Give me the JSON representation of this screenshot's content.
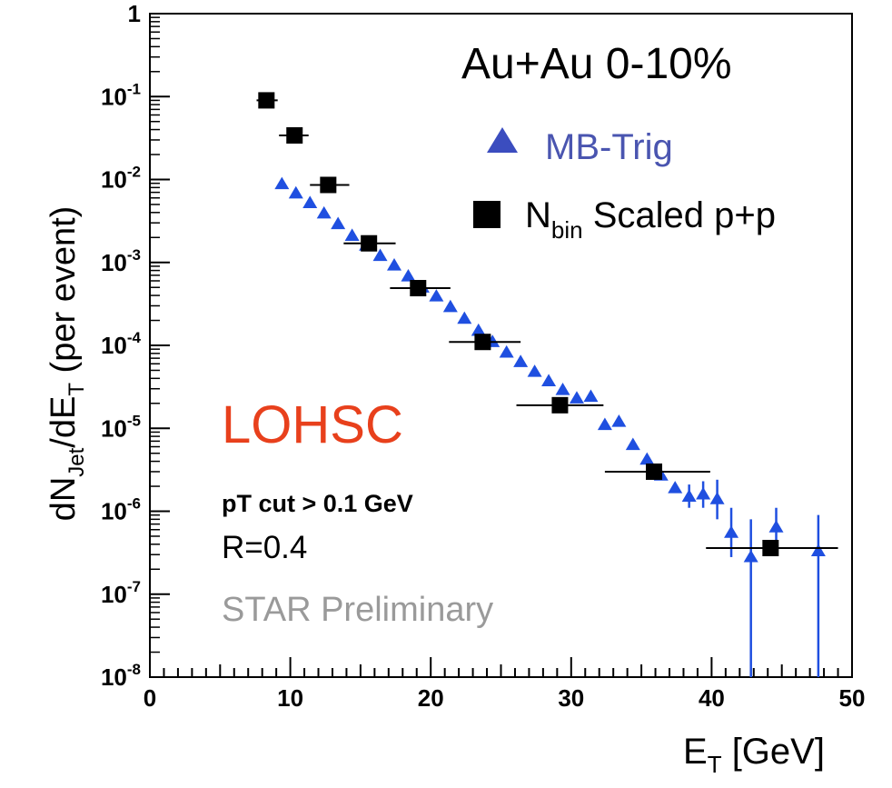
{
  "chart_data": {
    "type": "scatter",
    "title": "Au+Au 0-10%",
    "xlabel": {
      "main": "E",
      "sub": "T",
      "rest": " [GeV]"
    },
    "ylabel": {
      "d": "dN",
      "sub1": "Jet",
      "mid": "/dE",
      "sub2": "T",
      "rest": " (per event)"
    },
    "xlim": [
      0,
      50
    ],
    "ylim_log10": [
      -8,
      0
    ],
    "x_ticks": [
      "0",
      "10",
      "20",
      "30",
      "40",
      "50"
    ],
    "y_ticks": [
      {
        "base": "10",
        "exp": "-8"
      },
      {
        "base": "10",
        "exp": "-7"
      },
      {
        "base": "10",
        "exp": "-6"
      },
      {
        "base": "10",
        "exp": "-5"
      },
      {
        "base": "10",
        "exp": "-4"
      },
      {
        "base": "10",
        "exp": "-3"
      },
      {
        "base": "10",
        "exp": "-2"
      },
      {
        "base": "10",
        "exp": "-1"
      },
      {
        "base": "1",
        "exp": ""
      }
    ],
    "legend": [
      {
        "name": "MB-Trig",
        "marker": "triangle",
        "color": "#3b4dbf",
        "text_color": "#4a55b0"
      },
      {
        "name": "N",
        "sub": "bin",
        "rest": " Scaled p+p",
        "marker": "square",
        "color": "#000000",
        "text_color": "#000000"
      }
    ],
    "annotations": {
      "lohsc": "LOHSC",
      "ptcut": "pT cut > 0.1 GeV",
      "radius": "R=0.4",
      "star": "STAR Preliminary"
    },
    "colors": {
      "mb_trig": "#1f4fe0",
      "pp": "#000000",
      "lohsc": "#e8401c",
      "star": "#9a9a9a"
    },
    "series": [
      {
        "name": "MB-Trig",
        "marker": "triangle",
        "points": [
          {
            "x": 9.4,
            "y": 0.0088
          },
          {
            "x": 10.4,
            "y": 0.0068
          },
          {
            "x": 11.4,
            "y": 0.0052
          },
          {
            "x": 12.4,
            "y": 0.0039
          },
          {
            "x": 13.4,
            "y": 0.0029
          },
          {
            "x": 14.4,
            "y": 0.0021
          },
          {
            "x": 15.4,
            "y": 0.0016
          },
          {
            "x": 16.4,
            "y": 0.0012
          },
          {
            "x": 17.4,
            "y": 0.00092
          },
          {
            "x": 18.4,
            "y": 0.00068
          },
          {
            "x": 19.4,
            "y": 0.0005
          },
          {
            "x": 20.4,
            "y": 0.00039
          },
          {
            "x": 21.4,
            "y": 0.00029
          },
          {
            "x": 22.4,
            "y": 0.00021
          },
          {
            "x": 23.4,
            "y": 0.00015
          },
          {
            "x": 24.4,
            "y": 0.00011
          },
          {
            "x": 25.4,
            "y": 8.2e-05
          },
          {
            "x": 26.4,
            "y": 6.3e-05
          },
          {
            "x": 27.4,
            "y": 4.8e-05
          },
          {
            "x": 28.4,
            "y": 3.7e-05
          },
          {
            "x": 29.4,
            "y": 2.9e-05
          },
          {
            "x": 30.4,
            "y": 2.3e-05
          },
          {
            "x": 31.4,
            "y": 2.4e-05
          },
          {
            "x": 32.4,
            "y": 1.1e-05
          },
          {
            "x": 33.4,
            "y": 1.2e-05
          },
          {
            "x": 34.4,
            "y": 6.3e-06
          },
          {
            "x": 35.4,
            "y": 4.2e-06
          },
          {
            "x": 36.4,
            "y": 2.7e-06
          },
          {
            "x": 37.4,
            "y": 1.9e-06
          },
          {
            "x": 38.4,
            "y": 1.5e-06,
            "err_lo": 1.1e-06,
            "err_hi": 2.1e-06
          },
          {
            "x": 39.4,
            "y": 1.6e-06,
            "err_lo": 1.1e-06,
            "err_hi": 2.3e-06
          },
          {
            "x": 40.4,
            "y": 1.4e-06,
            "err_lo": 8e-07,
            "err_hi": 2.4e-06
          },
          {
            "x": 41.4,
            "y": 5.5e-07,
            "err_lo": 2.8e-07,
            "err_hi": 1.1e-06
          },
          {
            "x": 42.8,
            "y": 2.8e-07,
            "err_lo": 1e-08,
            "err_hi": 8e-07
          },
          {
            "x": 44.6,
            "y": 6.4e-07,
            "err_lo": 3e-07,
            "err_hi": 1.1e-06
          },
          {
            "x": 47.6,
            "y": 3.3e-07,
            "err_lo": 1e-08,
            "err_hi": 9e-07
          }
        ]
      },
      {
        "name": "N_bin Scaled p+p",
        "marker": "square",
        "points": [
          {
            "x": 8.3,
            "y": 0.09,
            "x_lo": 7.6,
            "x_hi": 9.1
          },
          {
            "x": 10.3,
            "y": 0.034,
            "x_lo": 9.2,
            "x_hi": 11.3
          },
          {
            "x": 12.7,
            "y": 0.0086,
            "x_lo": 11.4,
            "x_hi": 14.2
          },
          {
            "x": 15.6,
            "y": 0.0017,
            "x_lo": 13.8,
            "x_hi": 17.5
          },
          {
            "x": 19.1,
            "y": 0.00049,
            "x_lo": 17.1,
            "x_hi": 21.4
          },
          {
            "x": 23.7,
            "y": 0.00011,
            "x_lo": 21.3,
            "x_hi": 26.4
          },
          {
            "x": 29.2,
            "y": 1.9e-05,
            "x_lo": 26.1,
            "x_hi": 32.3
          },
          {
            "x": 35.9,
            "y": 3e-06,
            "x_lo": 32.4,
            "x_hi": 39.9
          },
          {
            "x": 44.2,
            "y": 3.6e-07,
            "x_lo": 39.6,
            "x_hi": 49.0
          }
        ]
      }
    ]
  }
}
